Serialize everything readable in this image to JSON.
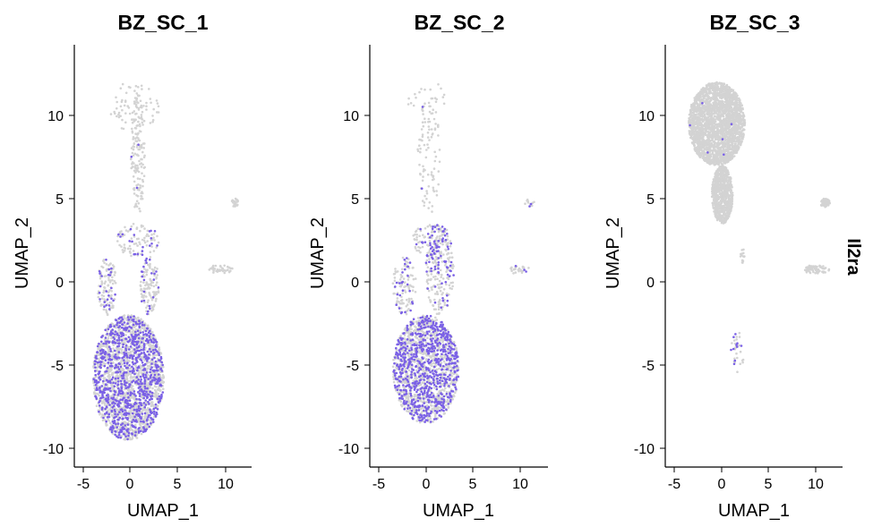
{
  "figure": {
    "feature_label": "Il2ra"
  },
  "chart_data": [
    {
      "type": "scatter",
      "title": "BZ_SC_1",
      "xlabel": "UMAP_1",
      "ylabel": "UMAP_2",
      "xlim": [
        -5.5,
        12.5
      ],
      "ylim": [
        -11,
        14
      ],
      "xticks": [
        -5,
        0,
        5,
        10
      ],
      "yticks": [
        -10,
        -5,
        0,
        5,
        10
      ],
      "xtick_labels": [
        "-5",
        "0",
        "5",
        "10"
      ],
      "ytick_labels": [
        "-10",
        "-5",
        "0",
        "5",
        "10"
      ],
      "grid": false,
      "background_color": "#d3d3d3",
      "expression_color": "#7b61e6",
      "point_counts": {
        "background": 3200,
        "expressing": 480
      },
      "regions": [
        {
          "x": [
            -4,
            3.5
          ],
          "y": [
            -9.5,
            -2
          ],
          "density": 0.78,
          "expression": 0.34
        },
        {
          "x": [
            -3.5,
            -1.5
          ],
          "y": [
            -2,
            1.5
          ],
          "density": 0.04,
          "expression": 0.18
        },
        {
          "x": [
            -1.5,
            3
          ],
          "y": [
            1.5,
            3.5
          ],
          "density": 0.03,
          "expression": 0.16
        },
        {
          "x": [
            1,
            3
          ],
          "y": [
            -2,
            1.5
          ],
          "density": 0.04,
          "expression": 0.2
        },
        {
          "x": [
            0,
            1.5
          ],
          "y": [
            4,
            11.5
          ],
          "density": 0.05,
          "expression": 0.02
        },
        {
          "x": [
            -2.5,
            3
          ],
          "y": [
            9,
            12
          ],
          "density": 0.02,
          "expression": 0
        },
        {
          "x": [
            10.5,
            11.5
          ],
          "y": [
            4.5,
            5
          ],
          "density": 0.008,
          "expression": 0
        },
        {
          "x": [
            8,
            11
          ],
          "y": [
            0.5,
            1
          ],
          "density": 0.012,
          "expression": 0
        }
      ]
    },
    {
      "type": "scatter",
      "title": "BZ_SC_2",
      "xlabel": "UMAP_1",
      "ylabel": "UMAP_2",
      "xlim": [
        -5.5,
        12.5
      ],
      "ylim": [
        -11,
        14
      ],
      "xticks": [
        -5,
        0,
        5,
        10
      ],
      "yticks": [
        -10,
        -5,
        0,
        5,
        10
      ],
      "xtick_labels": [
        "-5",
        "0",
        "5",
        "10"
      ],
      "ytick_labels": [
        "-10",
        "-5",
        "0",
        "5",
        "10"
      ],
      "grid": false,
      "background_color": "#d3d3d3",
      "expression_color": "#7b61e6",
      "point_counts": {
        "background": 2400,
        "expressing": 520
      },
      "regions": [
        {
          "x": [
            -3.5,
            3.5
          ],
          "y": [
            -8.5,
            -2
          ],
          "density": 0.74,
          "expression": 0.38
        },
        {
          "x": [
            -3.5,
            -1
          ],
          "y": [
            -2,
            1.5
          ],
          "density": 0.05,
          "expression": 0.2
        },
        {
          "x": [
            0,
            3
          ],
          "y": [
            -2,
            3.5
          ],
          "density": 0.1,
          "expression": 0.28
        },
        {
          "x": [
            -1.5,
            2.5
          ],
          "y": [
            1.5,
            3.5
          ],
          "density": 0.04,
          "expression": 0.2
        },
        {
          "x": [
            -1,
            1.5
          ],
          "y": [
            4,
            11
          ],
          "density": 0.04,
          "expression": 0.04
        },
        {
          "x": [
            -2,
            3
          ],
          "y": [
            10,
            12
          ],
          "density": 0.01,
          "expression": 0
        },
        {
          "x": [
            10.5,
            11.5
          ],
          "y": [
            4.5,
            5
          ],
          "density": 0.006,
          "expression": 0.2
        },
        {
          "x": [
            8.5,
            11
          ],
          "y": [
            0.5,
            1
          ],
          "density": 0.01,
          "expression": 0.1
        }
      ]
    },
    {
      "type": "scatter",
      "title": "BZ_SC_3",
      "xlabel": "UMAP_1",
      "ylabel": "UMAP_2",
      "xlim": [
        -5.5,
        12.5
      ],
      "ylim": [
        -11,
        14
      ],
      "xticks": [
        -5,
        0,
        5,
        10
      ],
      "yticks": [
        -10,
        -5,
        0,
        5,
        10
      ],
      "xtick_labels": [
        "-5",
        "0",
        "5",
        "10"
      ],
      "ytick_labels": [
        "-10",
        "-5",
        "0",
        "5",
        "10"
      ],
      "grid": false,
      "background_color": "#d3d3d3",
      "expression_color": "#7b61e6",
      "point_counts": {
        "background": 3400,
        "expressing": 8
      },
      "regions": [
        {
          "x": [
            -3.5,
            2.5
          ],
          "y": [
            7,
            12
          ],
          "density": 0.72,
          "expression": 0.002
        },
        {
          "x": [
            -1,
            1.2
          ],
          "y": [
            3.5,
            7
          ],
          "density": 0.22,
          "expression": 0.002
        },
        {
          "x": [
            10.5,
            11.5
          ],
          "y": [
            4.5,
            5
          ],
          "density": 0.02,
          "expression": 0
        },
        {
          "x": [
            8.5,
            11.5
          ],
          "y": [
            0.5,
            1
          ],
          "density": 0.02,
          "expression": 0
        },
        {
          "x": [
            1,
            2.5
          ],
          "y": [
            -5.5,
            -3
          ],
          "density": 0.01,
          "expression": 0.2
        },
        {
          "x": [
            2,
            2.5
          ],
          "y": [
            1,
            2
          ],
          "density": 0.004,
          "expression": 0
        }
      ]
    }
  ]
}
